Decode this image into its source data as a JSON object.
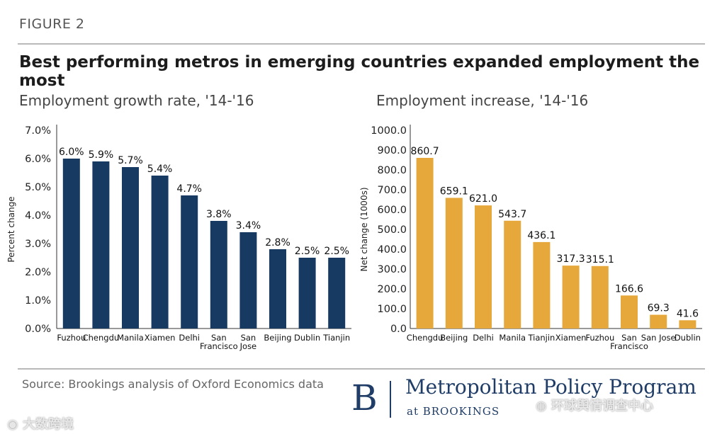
{
  "header": {
    "figure_label": "FIGURE 2",
    "title": "Best performing metros in emerging countries expanded employment the most"
  },
  "footer": {
    "source": "Source: Brookings analysis of Oxford Economics data",
    "logo_letter": "B",
    "logo_program": "Metropolitan Policy Program",
    "logo_org": "at BROOKINGS"
  },
  "watermarks": {
    "left": "大数跨境",
    "right": "环球舆情调查中心"
  },
  "colors": {
    "left_bars": "#173a63",
    "right_bars": "#e6a83b",
    "rule": "#b9b9b9"
  },
  "chart_data": [
    {
      "type": "bar",
      "title": "Employment growth rate, '14-'16",
      "xlabel": "",
      "ylabel": "Percent change",
      "categories": [
        "Fuzhou",
        "Chengdu",
        "Manila",
        "Xiamen",
        "Delhi",
        "San\nFrancisco",
        "San\nJose",
        "Beijing",
        "Dublin",
        "Tianjin"
      ],
      "values": [
        6.0,
        5.9,
        5.7,
        5.4,
        4.7,
        3.8,
        3.4,
        2.8,
        2.5,
        2.5
      ],
      "data_labels": [
        "6.0%",
        "5.9%",
        "5.7%",
        "5.4%",
        "4.7%",
        "3.8%",
        "3.4%",
        "2.8%",
        "2.5%",
        "2.5%"
      ],
      "yticks": [
        "0.0%",
        "1.0%",
        "2.0%",
        "3.0%",
        "4.0%",
        "5.0%",
        "6.0%",
        "7.0%"
      ],
      "ylim": [
        0,
        7
      ],
      "grid": false
    },
    {
      "type": "bar",
      "title": "Employment increase,  '14-'16",
      "xlabel": "",
      "ylabel": "Net change (1000s)",
      "categories": [
        "Chengdu",
        "Beijing",
        "Delhi",
        "Manila",
        "Tianjin",
        "Xiamen",
        "Fuzhou",
        "San\nFrancisco",
        "San Jose",
        "Dublin"
      ],
      "values": [
        860.7,
        659.1,
        621.0,
        543.7,
        436.1,
        317.3,
        315.1,
        166.6,
        69.3,
        41.6
      ],
      "data_labels": [
        "860.7",
        "659.1",
        "621.0",
        "543.7",
        "436.1",
        "317.3",
        "315.1",
        "166.6",
        "69.3",
        "41.6"
      ],
      "yticks": [
        "0.0",
        "100.0",
        "200.0",
        "300.0",
        "400.0",
        "500.0",
        "600.0",
        "700.0",
        "800.0",
        "900.0",
        "1000.0"
      ],
      "ylim": [
        0,
        1000
      ],
      "grid": false
    }
  ]
}
